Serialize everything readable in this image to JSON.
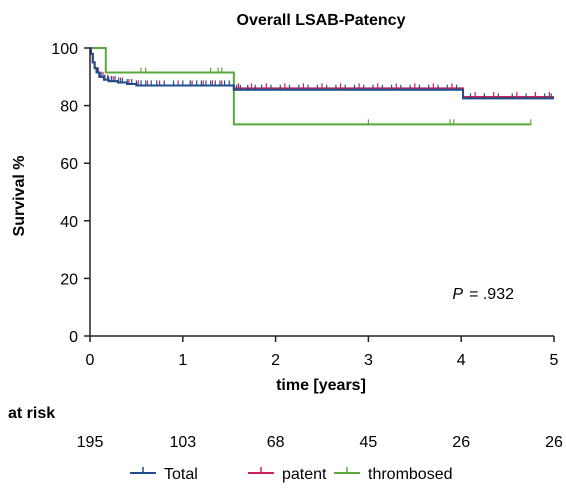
{
  "chart_data": {
    "type": "line",
    "title": "Overall LSAB-Patency",
    "xlabel": "time [years]",
    "ylabel": "Survival %",
    "xlim": [
      0,
      5
    ],
    "ylim": [
      0,
      100
    ],
    "x_ticks": [
      "0",
      "1",
      "2",
      "3",
      "4",
      "5"
    ],
    "y_ticks": [
      "0",
      "20",
      "40",
      "60",
      "80",
      "100"
    ],
    "grid": false,
    "legend_position": "bottom",
    "annotation": {
      "p_label": "P",
      "p_text": "= .932"
    },
    "at_risk": {
      "label": "at risk",
      "times": [
        0,
        1,
        2,
        3,
        4,
        5
      ],
      "counts": [
        "195",
        "103",
        "68",
        "45",
        "26",
        "26"
      ]
    },
    "series": [
      {
        "name": "Total",
        "color": "#1f4e8c",
        "points": [
          [
            0,
            100
          ],
          [
            0.01,
            98
          ],
          [
            0.03,
            95
          ],
          [
            0.05,
            93
          ],
          [
            0.07,
            91.5
          ],
          [
            0.1,
            90
          ],
          [
            0.15,
            89
          ],
          [
            0.2,
            88.5
          ],
          [
            0.3,
            88
          ],
          [
            0.4,
            87.5
          ],
          [
            0.5,
            87
          ],
          [
            1.0,
            87
          ],
          [
            1.5,
            87
          ],
          [
            1.55,
            85.5
          ],
          [
            2.0,
            85.5
          ],
          [
            3.0,
            85.5
          ],
          [
            3.5,
            85.5
          ],
          [
            4.0,
            85.5
          ],
          [
            4.02,
            82.5
          ],
          [
            5.0,
            82.5
          ]
        ],
        "censor_x": [
          0.08,
          0.12,
          0.16,
          0.2,
          0.23,
          0.27,
          0.31,
          0.35,
          0.4,
          0.45,
          0.5,
          0.55,
          0.6,
          0.66,
          0.72,
          0.8,
          0.9,
          1.0,
          1.08,
          1.15,
          1.2,
          1.25,
          1.3,
          1.35,
          1.4,
          1.45,
          1.5,
          1.58,
          1.62,
          1.7,
          1.78,
          1.85,
          1.95,
          2.05,
          2.15,
          2.25,
          2.35,
          2.45,
          2.55,
          2.65,
          2.75,
          2.85,
          2.95,
          3.05,
          3.15,
          3.25,
          3.35,
          3.45,
          3.55,
          3.65,
          3.75,
          3.85,
          3.95,
          4.1,
          4.25,
          4.4,
          4.55,
          4.7,
          4.9,
          4.97
        ]
      },
      {
        "name": "patent",
        "color": "#cc2255",
        "points": [
          [
            0,
            100
          ],
          [
            0.01,
            98
          ],
          [
            0.03,
            95
          ],
          [
            0.05,
            93
          ],
          [
            0.07,
            91.5
          ],
          [
            0.1,
            90
          ],
          [
            0.15,
            89
          ],
          [
            0.2,
            88.5
          ],
          [
            0.3,
            88
          ],
          [
            0.4,
            87.5
          ],
          [
            0.5,
            87
          ],
          [
            1.0,
            87
          ],
          [
            1.5,
            87
          ],
          [
            1.55,
            86
          ],
          [
            2.0,
            86
          ],
          [
            3.0,
            86
          ],
          [
            4.0,
            86
          ],
          [
            4.02,
            83
          ],
          [
            5.0,
            83
          ]
        ],
        "censor_x": [
          0.09,
          0.14,
          0.19,
          0.25,
          0.33,
          0.42,
          0.52,
          0.62,
          0.75,
          0.95,
          1.1,
          1.22,
          1.32,
          1.42,
          1.6,
          1.74,
          1.9,
          2.1,
          2.3,
          2.5,
          2.7,
          2.9,
          3.1,
          3.3,
          3.5,
          3.7,
          3.9,
          4.15,
          4.35,
          4.6,
          4.8,
          4.95
        ]
      },
      {
        "name": "thrombosed",
        "color": "#5aa83c",
        "points": [
          [
            0,
            100
          ],
          [
            0.17,
            100
          ],
          [
            0.17,
            91.5
          ],
          [
            1.55,
            91.5
          ],
          [
            1.55,
            73.5
          ],
          [
            4.75,
            73.5
          ]
        ],
        "censor_x": [
          0.55,
          0.6,
          1.3,
          1.38,
          1.42,
          3.0,
          3.88,
          3.92,
          4.75
        ]
      }
    ]
  }
}
